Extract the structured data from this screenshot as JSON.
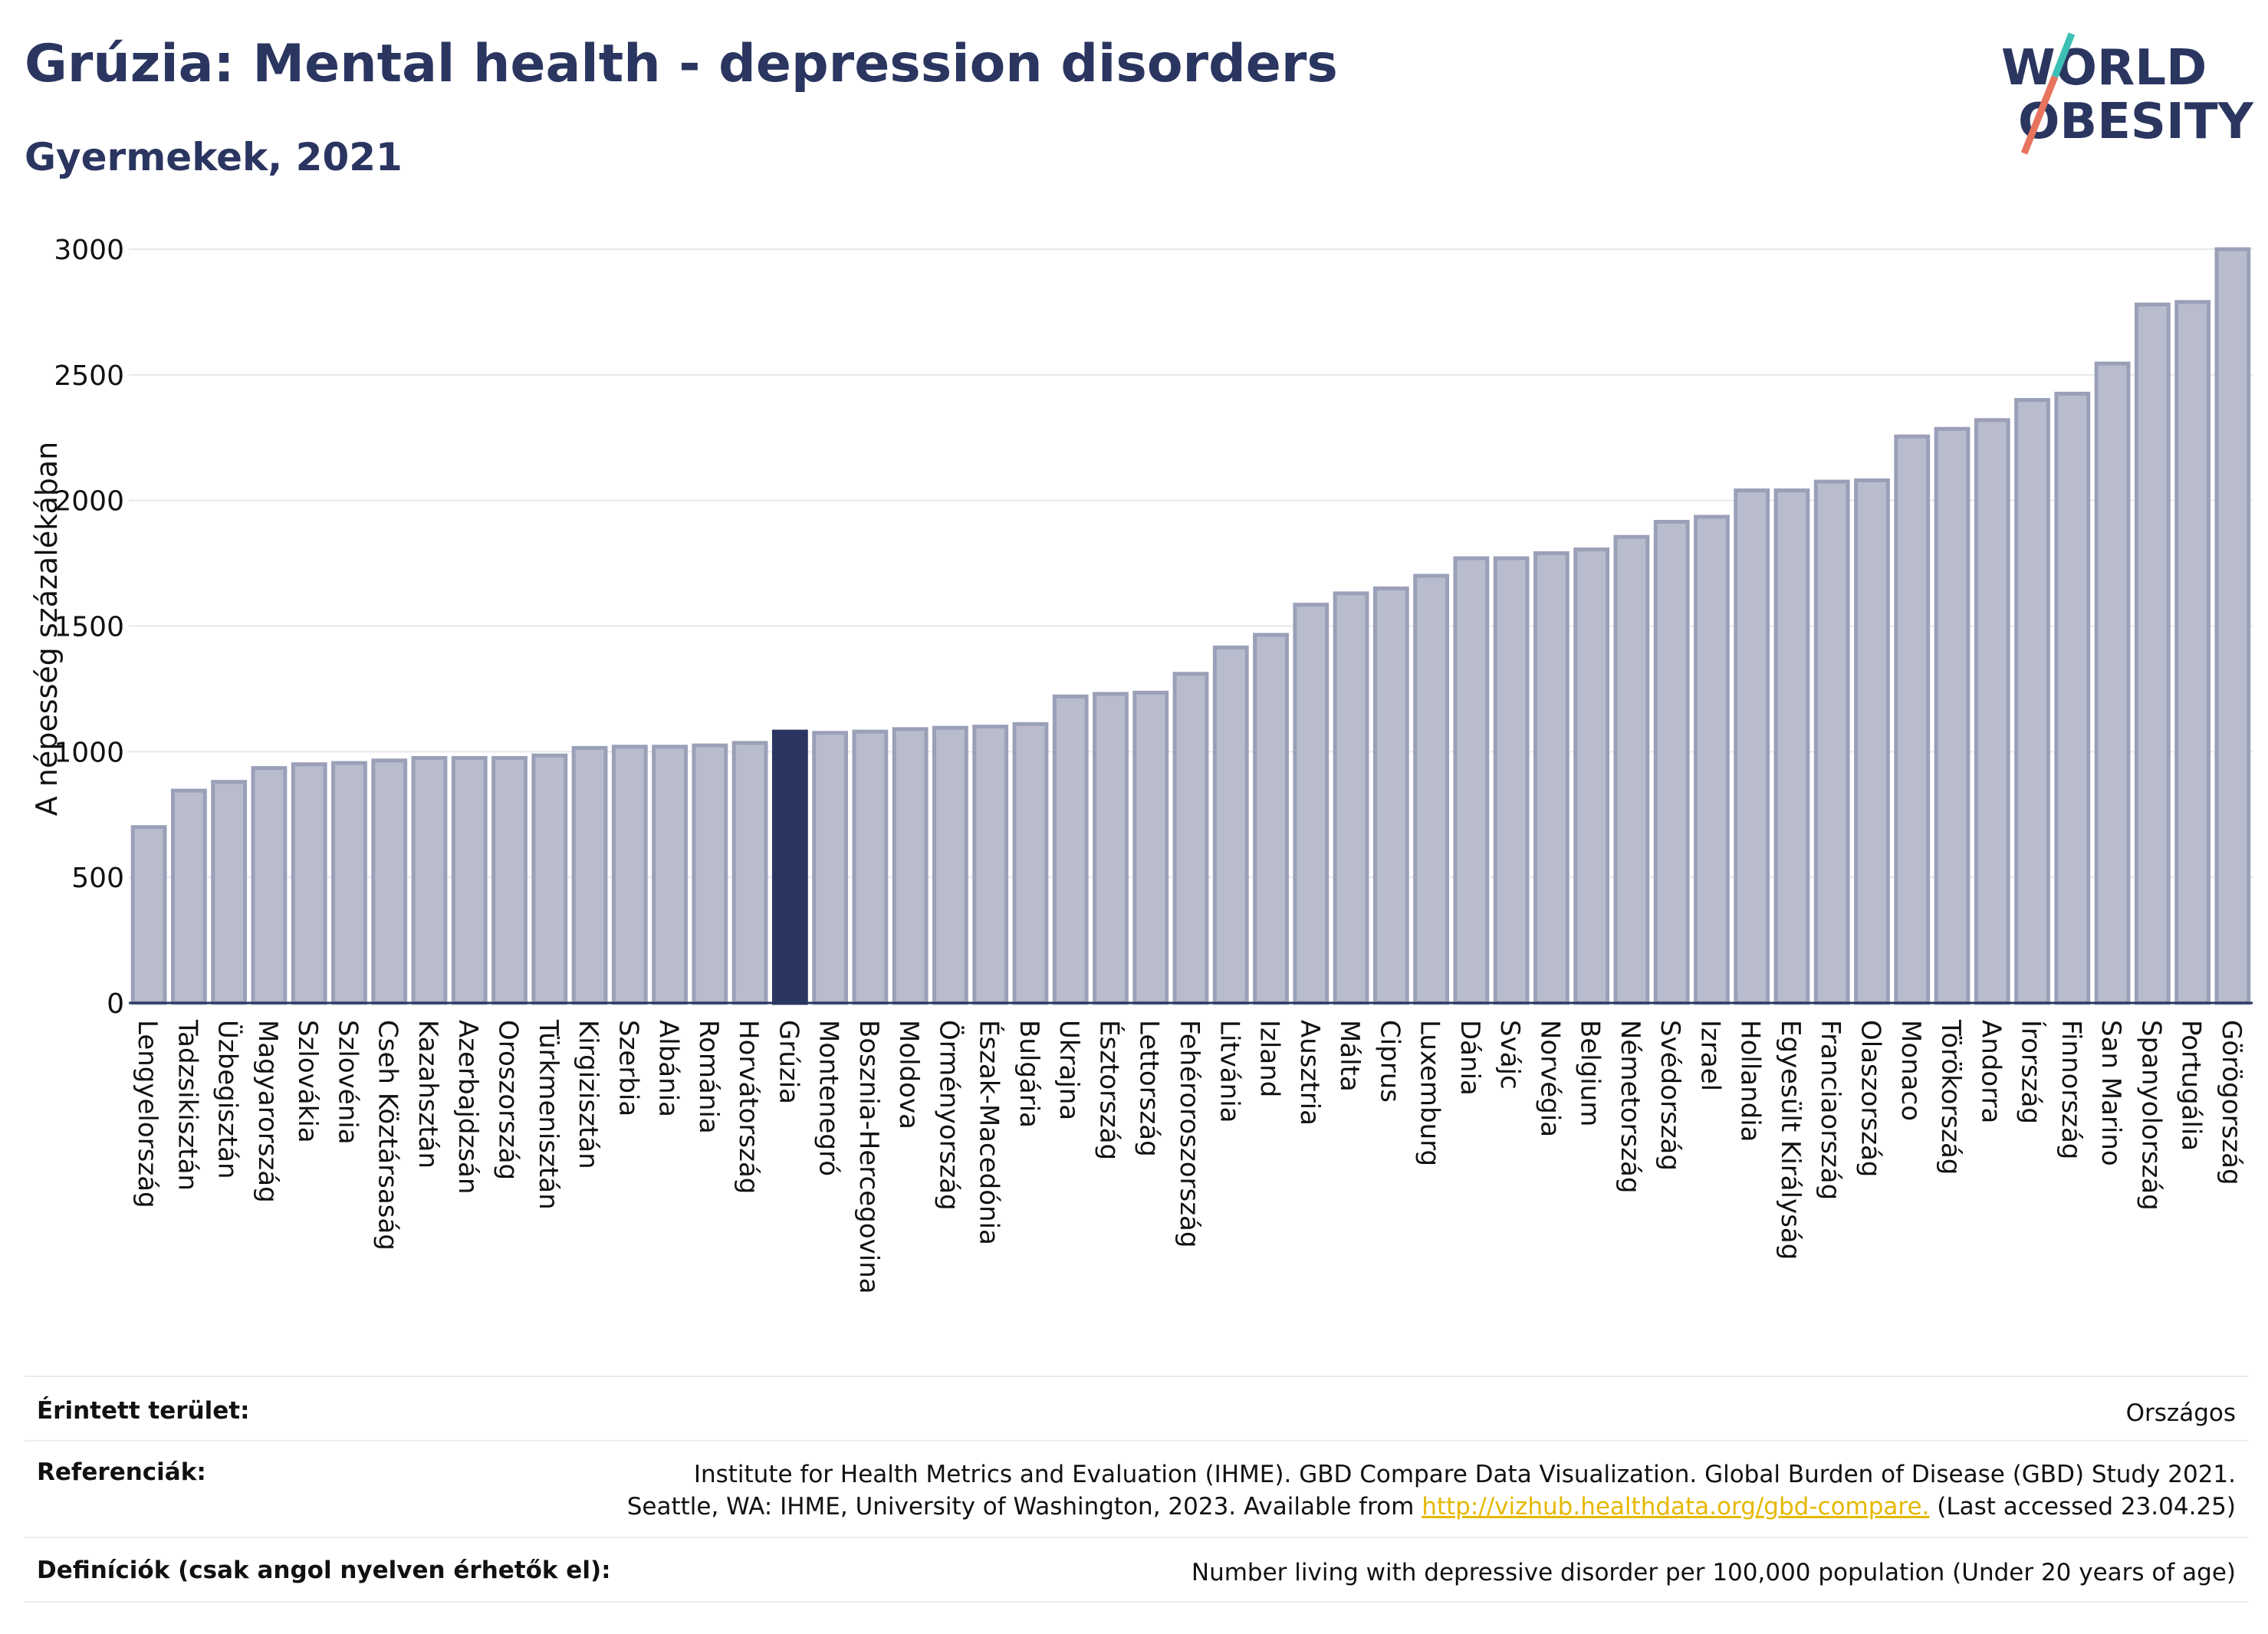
{
  "header": {
    "title": "Grúzia: Mental health - depression disorders",
    "subtitle": "Gyermekek, 2021",
    "logo_line1": "WORLD",
    "logo_line2": "OBESITY"
  },
  "colors": {
    "bar": "#b8bccc",
    "bar_border": "#9aa0b8",
    "highlight": "#2a3560",
    "grid": "#e6e8ee",
    "text": "#2a3560"
  },
  "chart_data": {
    "type": "bar",
    "ylabel": "A népesség százalékában",
    "ylim": [
      0,
      3000
    ],
    "yticks": [
      0,
      500,
      1000,
      1500,
      2000,
      2500,
      3000
    ],
    "grid": true,
    "highlight": "Grúzia",
    "categories": [
      "Lengyelország",
      "Tadzsikisztán",
      "Üzbegisztán",
      "Magyarország",
      "Szlovákia",
      "Szlovénia",
      "Cseh Köztársaság",
      "Kazahsztán",
      "Azerbajdzsán",
      "Oroszország",
      "Türkmenisztán",
      "Kirgizisztán",
      "Szerbia",
      "Albánia",
      "Románia",
      "Horvátország",
      "Grúzia",
      "Montenegró",
      "Bosznia-Hercegovina",
      "Moldova",
      "Örményország",
      "Észak-Macedónia",
      "Bulgária",
      "Ukrajna",
      "Észtország",
      "Lettország",
      "Fehéroroszország",
      "Litvánia",
      "Izland",
      "Ausztria",
      "Málta",
      "Ciprus",
      "Luxemburg",
      "Dánia",
      "Svájc",
      "Norvégia",
      "Belgium",
      "Németország",
      "Svédország",
      "Izrael",
      "Hollandia",
      "Egyesült Királyság",
      "Franciaország",
      "Olaszország",
      "Monaco",
      "Törökország",
      "Andorra",
      "Írország",
      "Finnország",
      "San Marino",
      "Spanyolország",
      "Portugália",
      "Görögország"
    ],
    "values": [
      700,
      845,
      880,
      935,
      950,
      955,
      965,
      975,
      975,
      975,
      985,
      1015,
      1020,
      1020,
      1025,
      1035,
      1080,
      1075,
      1080,
      1090,
      1095,
      1100,
      1110,
      1220,
      1230,
      1235,
      1310,
      1415,
      1465,
      1585,
      1630,
      1650,
      1700,
      1770,
      1770,
      1790,
      1805,
      1855,
      1915,
      1935,
      2040,
      2040,
      2075,
      2080,
      2255,
      2285,
      2320,
      2400,
      2425,
      2545,
      2780,
      2790,
      3000
    ]
  },
  "footer": {
    "area_label": "Érintett terület:",
    "area_value": "Országos",
    "ref_label": "Referenciák:",
    "ref_line1": "Institute for Health Metrics and Evaluation (IHME). GBD Compare Data Visualization. Global Burden of Disease (GBD) Study 2021.",
    "ref_line2_pre": "Seattle, WA: IHME, University of Washington, 2023. Available from ",
    "ref_link": "http://vizhub.healthdata.org/gbd-compare.",
    "ref_line2_post": " (Last accessed 23.04.25)",
    "def_label": "Definíciók (csak angol nyelven érhetők el):",
    "def_value": "Number living with depressive disorder per 100,000 population (Under 20 years of age)"
  }
}
